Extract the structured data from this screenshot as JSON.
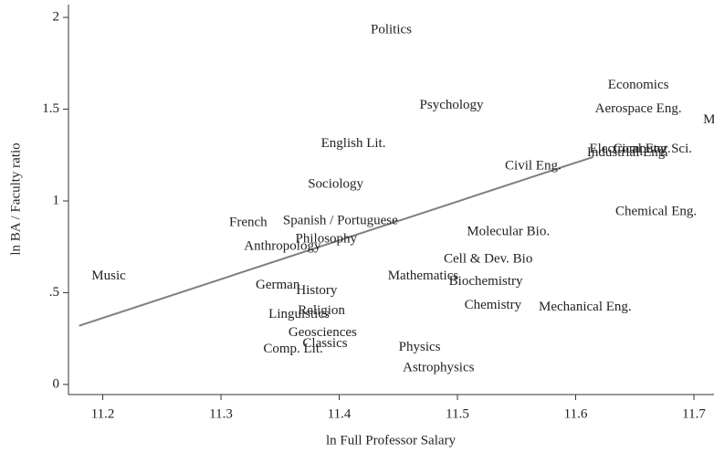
{
  "chart_data": {
    "type": "scatter",
    "x_label": "ln Full Professor Salary",
    "y_label": "ln BA / Faculty ratio",
    "labels": [
      "Politics",
      "Economics",
      "Aerospace Eng.",
      "Materials Sci.",
      "Psychology",
      "English Lit.",
      "Electrical Eng.",
      "Computer Sci.",
      "Industrial Eng.",
      "Civil Eng.",
      "Sociology",
      "Chemical Eng.",
      "French",
      "Spanish / Portuguese",
      "Philosophy",
      "Anthropology",
      "Molecular Bio.",
      "Cell & Dev. Bio",
      "Music",
      "German",
      "History",
      "Mathematics",
      "Biochemistry",
      "Chemistry",
      "Mechanical Eng.",
      "Religion",
      "Linguistics",
      "Geosciences",
      "Classics",
      "Comp. Lit.",
      "Physics",
      "Astrophysics"
    ],
    "x": [
      11.444,
      11.653,
      11.653,
      11.74,
      11.495,
      11.412,
      11.646,
      11.665,
      11.644,
      11.564,
      11.397,
      11.668,
      11.323,
      11.401,
      11.389,
      11.352,
      11.543,
      11.526,
      11.205,
      11.348,
      11.381,
      11.471,
      11.524,
      11.53,
      11.608,
      11.385,
      11.366,
      11.386,
      11.388,
      11.361,
      11.468,
      11.484
    ],
    "values": [
      1.93,
      1.63,
      1.5,
      1.44,
      1.52,
      1.31,
      1.28,
      1.28,
      1.26,
      1.19,
      1.09,
      0.94,
      0.88,
      0.89,
      0.79,
      0.75,
      0.83,
      0.68,
      0.59,
      0.54,
      0.51,
      0.59,
      0.56,
      0.43,
      0.42,
      0.4,
      0.38,
      0.28,
      0.22,
      0.19,
      0.2,
      0.09
    ],
    "fit_line": {
      "x": [
        11.18,
        11.615
      ],
      "y": [
        0.32,
        1.24
      ],
      "color": "#808080"
    },
    "xlim": [
      11.171,
      11.717
    ],
    "ylim": [
      -0.055,
      2.07
    ],
    "xticks": [
      11.2,
      11.3,
      11.4,
      11.5,
      11.6,
      11.7
    ],
    "yticks": [
      0,
      {
        "value": 0.5,
        "label": ".5"
      },
      1,
      1.5,
      2
    ]
  }
}
